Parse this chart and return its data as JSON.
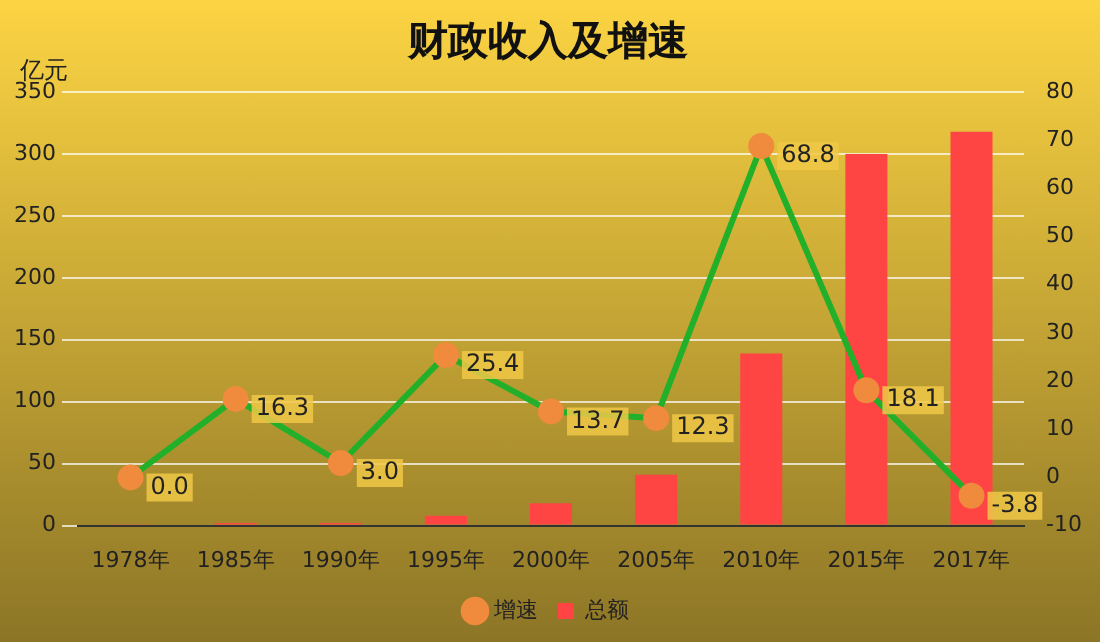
{
  "chart_data": {
    "type": "bar",
    "title": "财政收入及增速",
    "ylabel": "亿元",
    "categories": [
      "1978年",
      "1985年",
      "1990年",
      "1995年",
      "2000年",
      "2005年",
      "2010年",
      "2015年",
      "2017年"
    ],
    "series": [
      {
        "name": "总额",
        "color": "#ff4444",
        "values": [
          1,
          2,
          2,
          8,
          18,
          41,
          139,
          300,
          318
        ]
      },
      {
        "name": "增速",
        "type": "line",
        "axis": "y2",
        "color": "#22b02a",
        "marker": "circle",
        "values": [
          0.0,
          16.3,
          3.0,
          25.4,
          13.7,
          12.3,
          68.8,
          18.1,
          -3.8
        ],
        "value_labels": [
          "0.0",
          "16.3",
          "3.0",
          "25.4",
          "13.7",
          "12.3",
          "68.8",
          "18.1",
          "-3.8"
        ]
      }
    ],
    "ylim": [
      0,
      350
    ],
    "yticks": [
      0,
      50,
      100,
      150,
      200,
      250,
      300,
      350
    ],
    "y2lim": [
      -10,
      80
    ],
    "y2ticks": [
      -10,
      0,
      10,
      20,
      30,
      40,
      50,
      60,
      70,
      80
    ],
    "grid": "y",
    "legend": "bottom"
  }
}
